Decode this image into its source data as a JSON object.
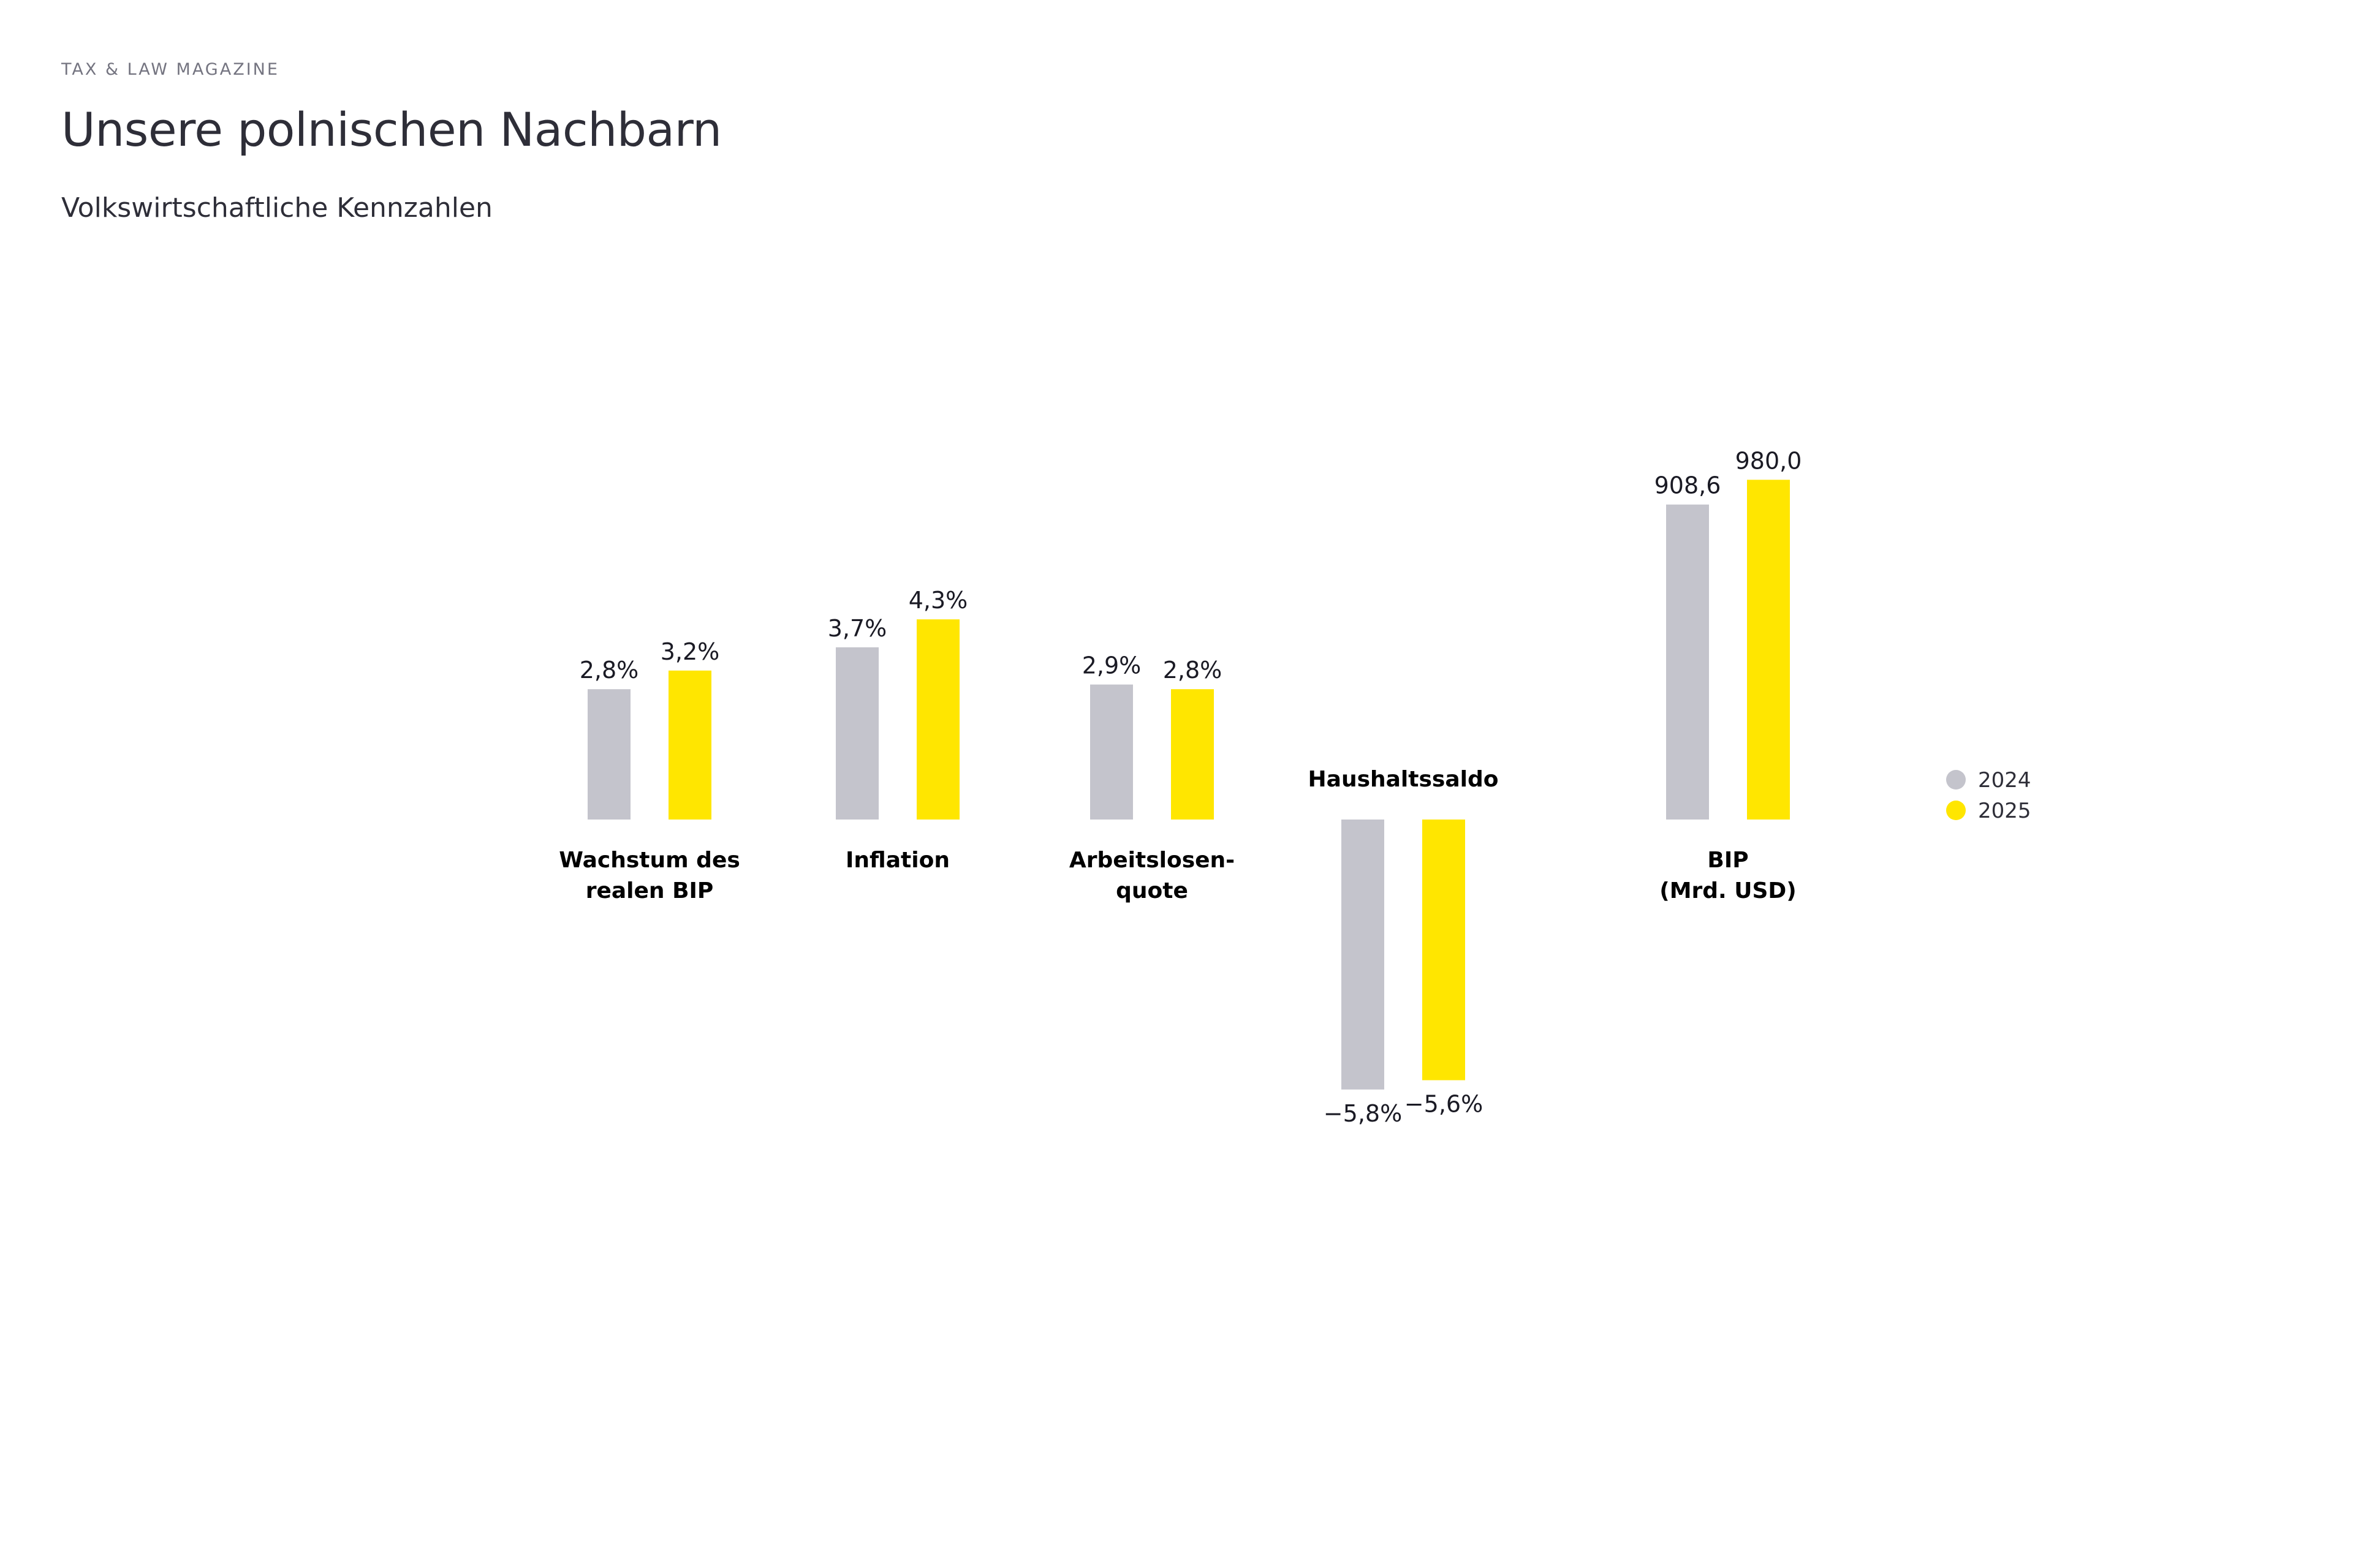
{
  "header": {
    "kicker": "TAX & LAW MAGAZINE",
    "title": "Unsere polnischen Nachbarn",
    "subtitle": "Volkswirtschaftliche Kennzahlen"
  },
  "colors": {
    "series_2024": "#c4c4cc",
    "series_2025": "#ffe600",
    "text": "#2e2e38"
  },
  "chart_data": {
    "type": "bar",
    "title": "",
    "xlabel": "",
    "ylabel": "",
    "legend_position": "right",
    "grid": false,
    "series": [
      {
        "name": "2024",
        "color": "#c4c4cc"
      },
      {
        "name": "2025",
        "color": "#ffe600"
      }
    ],
    "groups": [
      {
        "category": [
          "Wachstum des",
          "realen BIP"
        ],
        "values": [
          2.8,
          3.2
        ],
        "labels": [
          "2,8%",
          "3,2%"
        ]
      },
      {
        "category": [
          "Inflation"
        ],
        "values": [
          3.7,
          4.3
        ],
        "labels": [
          "3,7%",
          "4,3%"
        ]
      },
      {
        "category": [
          "Arbeitslosen-",
          "quote"
        ],
        "values": [
          2.9,
          2.8
        ],
        "labels": [
          "2,9%",
          "2,8%"
        ]
      },
      {
        "category": [
          "Haushaltssaldo"
        ],
        "values": [
          -5.8,
          -5.6
        ],
        "labels": [
          "−5,8%",
          "−5,6%"
        ]
      },
      {
        "category": [
          "BIP",
          "(Mrd. USD)"
        ],
        "values": [
          908.6,
          980.0
        ],
        "labels": [
          "908,6",
          "980,0"
        ]
      }
    ]
  }
}
